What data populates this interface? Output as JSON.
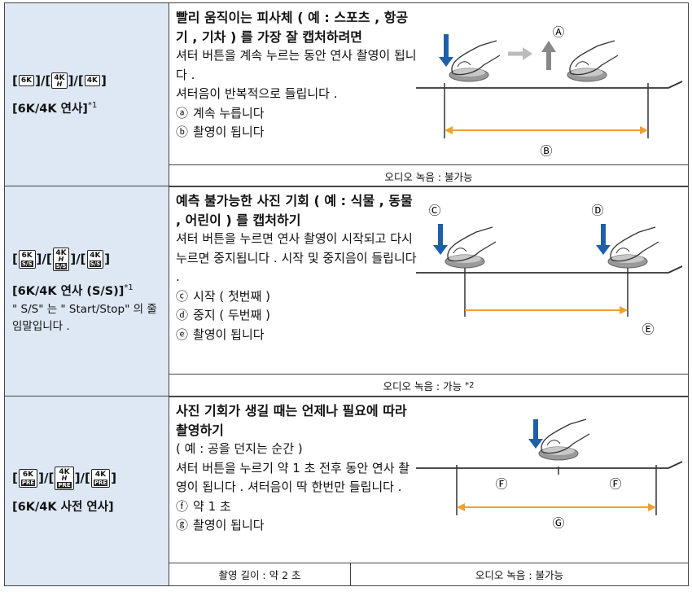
{
  "icon_brackets": {
    "open": "[",
    "separator": "]/[",
    "close": "]"
  },
  "rows": [
    {
      "icons": [
        {
          "text": "6K"
        },
        {
          "text": "4K",
          "sup": "H"
        },
        {
          "text": "4K"
        }
      ],
      "name": "[6K/4K 연사]",
      "name_note": "*1",
      "heading": "빨리 움직이는 피사체 ( 예 : 스포츠 , 항공기 , 기차 ) 를 가장 잘 캡처하려면",
      "description": [
        "셔터 버튼을 계속 누르는 동안 연사 촬영이 됩니다 .",
        "셔터음이 반복적으로 들립니다 ."
      ],
      "items": [
        {
          "mark": "ⓐ",
          "text": "계속 누릅니다"
        },
        {
          "mark": "ⓑ",
          "text": "촬영이 됩니다"
        }
      ],
      "diagram_labels": [
        "Ⓐ",
        "Ⓑ"
      ],
      "footer": [
        {
          "text": "오디오 녹음 : 불가능"
        }
      ]
    },
    {
      "icons": [
        {
          "text": "6K",
          "sub": "S/S"
        },
        {
          "text": "4K",
          "sup": "H",
          "sub": "S/S"
        },
        {
          "text": "4K",
          "sub": "S/S"
        }
      ],
      "name": "[6K/4K 연사 (S/S)]",
      "name_note": "*1",
      "name_detail": "\" S/S\" 는 \" Start/Stop\" 의 줄임말입니다 .",
      "heading": "예측 불가능한 사진 기회 ( 예 : 식물 , 동물 , 어린이 ) 를 캡처하기",
      "description": [
        "셔터 버튼을 누르면 연사 촬영이 시작되고 다시 누르면 중지됩니다 . 시작 및 중지음이 들립니다 ."
      ],
      "items": [
        {
          "mark": "ⓒ",
          "text": "시작 ( 첫번째 )"
        },
        {
          "mark": "ⓓ",
          "text": "중지 ( 두번째 )"
        },
        {
          "mark": "ⓔ",
          "text": "촬영이 됩니다"
        }
      ],
      "diagram_labels": [
        "Ⓒ",
        "Ⓓ",
        "Ⓔ"
      ],
      "footer": [
        {
          "text": "오디오 녹음 : 가능",
          "note": "*2"
        }
      ]
    },
    {
      "icons": [
        {
          "text": "6K",
          "sub": "PRE"
        },
        {
          "text": "4K",
          "sup": "H",
          "sub": "PRE"
        },
        {
          "text": "4K",
          "sub": "PRE"
        }
      ],
      "name": "[6K/4K 사전 연사]",
      "heading": "사진 기회가 생길 때는 언제나 필요에 따라 촬영하기",
      "description": [
        "( 예 : 공을 던지는 순간 )",
        "셔터 버튼을 누르기 약 1 초 전후 동안 연사 촬영이 됩니다 . 셔터음이 딱 한번만 들립니다 ."
      ],
      "items": [
        {
          "mark": "ⓕ",
          "text": "약 1 초"
        },
        {
          "mark": "ⓖ",
          "text": "촬영이 됩니다"
        }
      ],
      "diagram_labels": [
        "Ⓕ",
        "Ⓕ",
        "Ⓖ"
      ],
      "footer": [
        {
          "text": "촬영 길이 : 약 2 초"
        },
        {
          "text": "오디오 녹음 : 불가능"
        }
      ]
    }
  ]
}
